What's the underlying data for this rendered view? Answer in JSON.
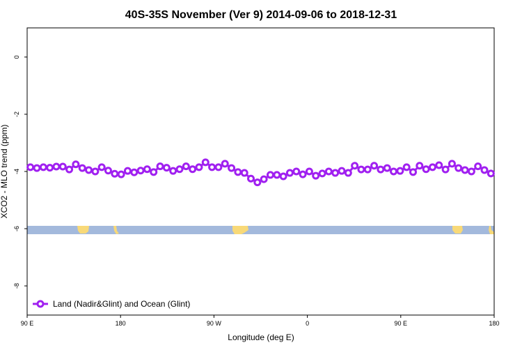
{
  "chart_data": {
    "type": "line",
    "title": "40S-35S November (Ver 9)   2014-09-06 to 2018-12-31",
    "x_label": "Longitude (deg E)",
    "y_label": "XCO2 - MLO trend (ppm)",
    "x": [
      93.125,
      99.375,
      105.625,
      111.875,
      118.125,
      124.375,
      130.625,
      136.875,
      143.125,
      149.375,
      155.625,
      161.875,
      168.125,
      174.375,
      180.625,
      186.875,
      193.125,
      199.375,
      205.625,
      211.875,
      218.125,
      224.375,
      230.625,
      236.875,
      243.125,
      249.375,
      255.625,
      261.875,
      268.125,
      274.375,
      280.625,
      286.875,
      293.125,
      299.375,
      305.625,
      311.875,
      318.125,
      324.375,
      330.625,
      336.875,
      343.125,
      349.375,
      355.625,
      361.875,
      368.125,
      374.375,
      380.625,
      386.875,
      393.125,
      399.375,
      405.625,
      411.875,
      418.125,
      424.375,
      430.625,
      436.875,
      443.125,
      449.375,
      455.625,
      461.875,
      468.125,
      474.375,
      480.625,
      486.875,
      493.125,
      499.375,
      505.625,
      511.875,
      518.125,
      524.375,
      530.625,
      536.875
    ],
    "series": [
      {
        "name": "Land (Nadir&Glint) and Ocean (Glint)",
        "color": "#a020f0",
        "values": [
          -3.85,
          -3.88,
          -3.85,
          -3.87,
          -3.83,
          -3.83,
          -3.93,
          -3.75,
          -3.88,
          -3.95,
          -4.0,
          -3.85,
          -3.97,
          -4.08,
          -4.1,
          -3.98,
          -4.03,
          -3.97,
          -3.92,
          -4.02,
          -3.82,
          -3.87,
          -3.98,
          -3.92,
          -3.82,
          -3.92,
          -3.85,
          -3.68,
          -3.85,
          -3.85,
          -3.73,
          -3.88,
          -4.02,
          -4.05,
          -4.25,
          -4.38,
          -4.27,
          -4.12,
          -4.12,
          -4.17,
          -4.05,
          -4.0,
          -4.1,
          -4.0,
          -4.15,
          -4.07,
          -4.0,
          -4.05,
          -3.98,
          -4.05,
          -3.8,
          -3.93,
          -3.93,
          -3.8,
          -3.93,
          -3.88,
          -4.0,
          -3.98,
          -3.85,
          -4.02,
          -3.8,
          -3.92,
          -3.85,
          -3.78,
          -3.93,
          -3.73,
          -3.88,
          -3.95,
          -4.0,
          -3.82,
          -3.95,
          -4.07
        ]
      }
    ],
    "xlim": [
      90,
      540
    ],
    "xticks": [
      {
        "value": 90,
        "label": "90 E"
      },
      180,
      {
        "value": 270,
        "label": "90 W"
      },
      {
        "value": 360,
        "label": "0"
      },
      {
        "value": 450,
        "label": "90 E"
      },
      {
        "value": 540,
        "label": "180"
      }
    ],
    "ylim": [
      -9.02,
      1.02
    ],
    "yticks": [
      0,
      -2,
      -4,
      -6,
      -8
    ],
    "legend": "lower left",
    "grid": false
  }
}
